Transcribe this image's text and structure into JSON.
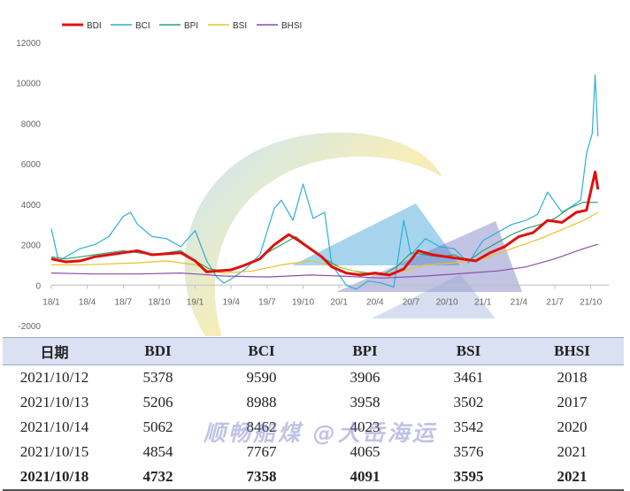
{
  "chart_data": {
    "type": "line",
    "ylim": [
      -2000,
      12000
    ],
    "y_ticks": [
      -2000,
      0,
      2000,
      4000,
      6000,
      8000,
      10000,
      12000
    ],
    "y_tick_labels": [
      "-2000",
      "0",
      "2000",
      "4000",
      "6000",
      "8000",
      "10000",
      "12000"
    ],
    "x_range": [
      2018.0,
      2021.875
    ],
    "x_ticks": [
      2018.0,
      2018.25,
      2018.5,
      2018.75,
      2019.0,
      2019.25,
      2019.5,
      2019.75,
      2020.0,
      2020.25,
      2020.5,
      2020.75,
      2021.0,
      2021.25,
      2021.5,
      2021.75
    ],
    "x_tick_labels": [
      "18/1",
      "18/4",
      "18/7",
      "18/10",
      "19/1",
      "19/4",
      "19/7",
      "19/10",
      "20/1",
      "20/4",
      "20/7",
      "20/10",
      "21/1",
      "21/4",
      "21/7",
      "21/10"
    ],
    "series": [
      {
        "name": "BDI",
        "color": "#e01010",
        "width": 3,
        "x": [
          2018.0,
          2018.1,
          2018.2,
          2018.3,
          2018.4,
          2018.5,
          2018.6,
          2018.7,
          2018.8,
          2018.9,
          2019.0,
          2019.08,
          2019.15,
          2019.25,
          2019.35,
          2019.45,
          2019.55,
          2019.65,
          2019.72,
          2019.8,
          2019.88,
          2019.95,
          2020.05,
          2020.15,
          2020.25,
          2020.35,
          2020.45,
          2020.55,
          2020.65,
          2020.75,
          2020.85,
          2020.95,
          2021.05,
          2021.15,
          2021.25,
          2021.35,
          2021.45,
          2021.55,
          2021.65,
          2021.72,
          2021.78,
          2021.8
        ],
        "y": [
          1300,
          1150,
          1200,
          1400,
          1500,
          1600,
          1700,
          1500,
          1550,
          1600,
          1200,
          650,
          700,
          750,
          1000,
          1300,
          2000,
          2500,
          2200,
          1800,
          1400,
          900,
          600,
          500,
          600,
          500,
          800,
          1700,
          1500,
          1400,
          1300,
          1200,
          1600,
          1900,
          2400,
          2600,
          3200,
          3100,
          3600,
          3700,
          5600,
          4732
        ]
      },
      {
        "name": "BCI",
        "color": "#2ab0d6",
        "width": 1.2,
        "x": [
          2018.0,
          2018.05,
          2018.1,
          2018.2,
          2018.3,
          2018.4,
          2018.5,
          2018.55,
          2018.6,
          2018.7,
          2018.8,
          2018.9,
          2019.0,
          2019.08,
          2019.15,
          2019.2,
          2019.25,
          2019.35,
          2019.45,
          2019.55,
          2019.6,
          2019.68,
          2019.75,
          2019.82,
          2019.9,
          2019.95,
          2020.05,
          2020.12,
          2020.2,
          2020.3,
          2020.38,
          2020.45,
          2020.5,
          2020.6,
          2020.7,
          2020.8,
          2020.9,
          2021.0,
          2021.1,
          2021.2,
          2021.3,
          2021.38,
          2021.45,
          2021.55,
          2021.62,
          2021.68,
          2021.72,
          2021.76,
          2021.78,
          2021.8
        ],
        "y": [
          2800,
          1200,
          1400,
          1800,
          2000,
          2400,
          3400,
          3600,
          3000,
          2400,
          2300,
          1900,
          2700,
          1200,
          400,
          100,
          300,
          800,
          1500,
          3800,
          4200,
          3200,
          5000,
          3300,
          3600,
          1000,
          0,
          -200,
          200,
          100,
          -100,
          3200,
          1500,
          2300,
          1900,
          1800,
          1100,
          2200,
          2600,
          3000,
          3200,
          3500,
          4600,
          3600,
          3900,
          4200,
          6500,
          7500,
          10400,
          7358
        ]
      },
      {
        "name": "BPI",
        "color": "#2ea36a",
        "width": 1.2,
        "x": [
          2018.0,
          2018.1,
          2018.2,
          2018.3,
          2018.4,
          2018.5,
          2018.6,
          2018.7,
          2018.8,
          2018.9,
          2019.0,
          2019.1,
          2019.2,
          2019.3,
          2019.4,
          2019.5,
          2019.6,
          2019.7,
          2019.8,
          2019.9,
          2020.0,
          2020.1,
          2020.2,
          2020.3,
          2020.4,
          2020.5,
          2020.6,
          2020.7,
          2020.8,
          2020.9,
          2021.0,
          2021.1,
          2021.2,
          2021.3,
          2021.4,
          2021.5,
          2021.6,
          2021.7,
          2021.8
        ],
        "y": [
          1400,
          1300,
          1400,
          1500,
          1600,
          1700,
          1600,
          1500,
          1600,
          1700,
          1200,
          800,
          700,
          900,
          1100,
          1600,
          2000,
          2400,
          1800,
          1300,
          900,
          700,
          600,
          500,
          900,
          1600,
          1500,
          1400,
          1500,
          1200,
          1700,
          2100,
          2500,
          2800,
          3000,
          3300,
          3800,
          4100,
          4091
        ]
      },
      {
        "name": "BSI",
        "color": "#e8c32a",
        "width": 1.2,
        "x": [
          2018.0,
          2018.2,
          2018.4,
          2018.6,
          2018.8,
          2019.0,
          2019.1,
          2019.2,
          2019.4,
          2019.6,
          2019.8,
          2020.0,
          2020.2,
          2020.4,
          2020.6,
          2020.8,
          2021.0,
          2021.2,
          2021.4,
          2021.6,
          2021.7,
          2021.8
        ],
        "y": [
          1000,
          1000,
          1050,
          1100,
          1200,
          1000,
          700,
          600,
          700,
          1000,
          1200,
          900,
          500,
          600,
          1000,
          1100,
          1300,
          1800,
          2300,
          2900,
          3200,
          3595
        ]
      },
      {
        "name": "BHSI",
        "color": "#8a4fae",
        "width": 1.2,
        "x": [
          2018.0,
          2018.3,
          2018.6,
          2018.9,
          2019.0,
          2019.2,
          2019.5,
          2019.8,
          2020.0,
          2020.3,
          2020.6,
          2020.9,
          2021.1,
          2021.3,
          2021.5,
          2021.7,
          2021.8
        ],
        "y": [
          600,
          550,
          550,
          600,
          550,
          450,
          400,
          500,
          450,
          350,
          450,
          600,
          700,
          900,
          1300,
          1800,
          2021
        ]
      }
    ]
  },
  "table": {
    "headers": [
      "日期",
      "BDI",
      "BCI",
      "BPI",
      "BSI",
      "BHSI"
    ],
    "rows": [
      [
        "2021/10/12",
        "5378",
        "9590",
        "3906",
        "3461",
        "2018"
      ],
      [
        "2021/10/13",
        "5206",
        "8988",
        "3958",
        "3502",
        "2017"
      ],
      [
        "2021/10/14",
        "5062",
        "8462",
        "4023",
        "3542",
        "2020"
      ],
      [
        "2021/10/15",
        "4854",
        "7767",
        "4065",
        "3576",
        "2021"
      ],
      [
        "2021/10/18",
        "4732",
        "7358",
        "4091",
        "3595",
        "2021"
      ]
    ]
  },
  "watermark": "顺畅船煤 @大岳海运"
}
